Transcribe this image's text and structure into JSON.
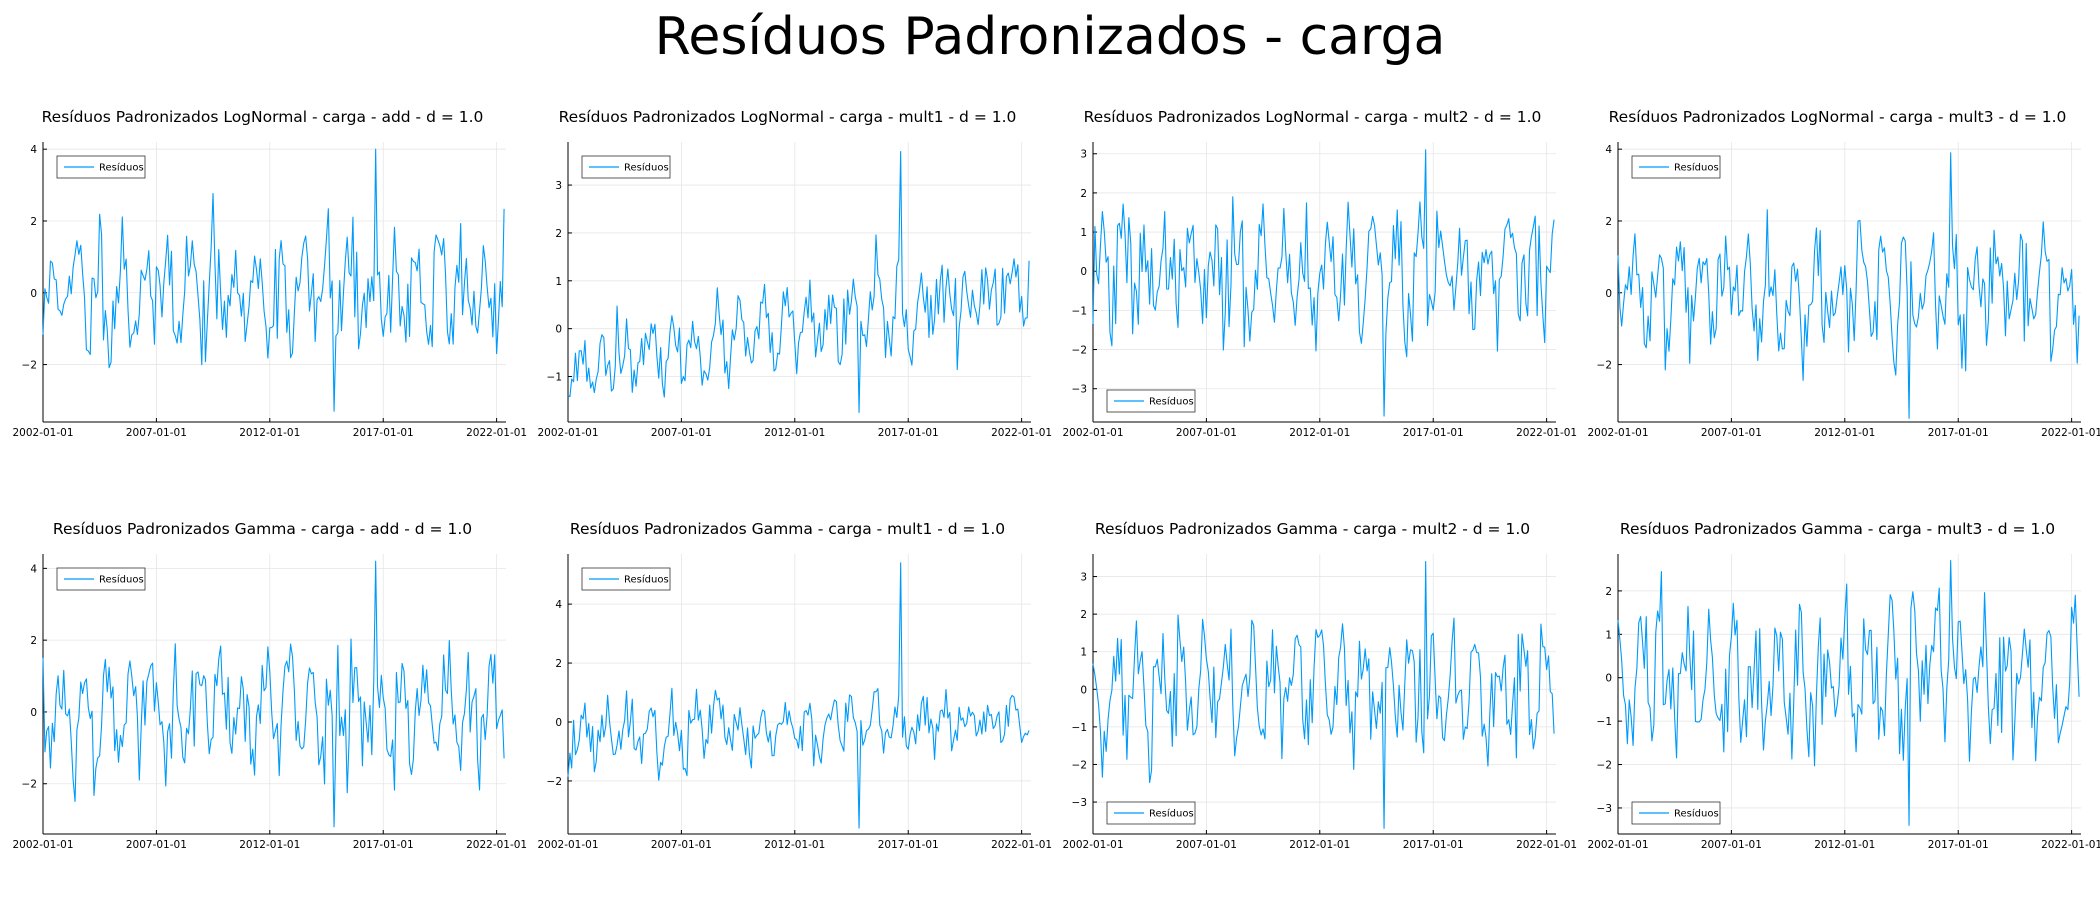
{
  "title": "Resíduos Padronizados - carga",
  "colors": {
    "series": "#009AFA",
    "axis": "#000000",
    "grid": "#E6E6E6"
  },
  "chart_data": [
    {
      "type": "line",
      "title": "Resíduos Padronizados LogNormal - carga - add - d = 1.0",
      "xlim": [
        "2002-01-01",
        "2022-06-01"
      ],
      "ylim": [
        -3.6,
        4.2
      ],
      "yticks": [
        -2,
        0,
        2,
        4
      ],
      "xticks": [
        "2002-01-01",
        "2007-01-01",
        "2012-01-01",
        "2017-01-01",
        "2022-01-01"
      ],
      "legend": {
        "label": "Resíduos",
        "position": "top-left"
      },
      "grid": true,
      "series": [
        {
          "name": "Resíduos",
          "start": "2002-01-01",
          "freq": "monthly",
          "stats": {
            "n": 245,
            "mean": 0.0,
            "sd": 1.0,
            "min": -3.3,
            "max": 4.0,
            "seed": 11,
            "trend": 0,
            "trend_hetero": 0
          }
        }
      ]
    },
    {
      "type": "line",
      "title": "Resíduos Padronizados LogNormal - carga - mult1 - d = 1.0",
      "xlim": [
        "2002-01-01",
        "2022-06-01"
      ],
      "ylim": [
        -1.95,
        3.9
      ],
      "yticks": [
        -1,
        0,
        1,
        2,
        3
      ],
      "xticks": [
        "2002-01-01",
        "2007-01-01",
        "2012-01-01",
        "2017-01-01",
        "2022-01-01"
      ],
      "legend": {
        "label": "Resíduos",
        "position": "top-left"
      },
      "grid": true,
      "series": [
        {
          "name": "Resíduos",
          "start": "2002-01-01",
          "freq": "monthly",
          "stats": {
            "n": 245,
            "mean": 0.0,
            "sd": 0.35,
            "min": -1.75,
            "max": 3.7,
            "seed": 23,
            "trend": 1.7,
            "trend_hetero": 1
          }
        }
      ]
    },
    {
      "type": "line",
      "title": "Resíduos Padronizados LogNormal - carga - mult2 - d = 1.0",
      "xlim": [
        "2002-01-01",
        "2022-06-01"
      ],
      "ylim": [
        -3.85,
        3.3
      ],
      "yticks": [
        -3,
        -2,
        -1,
        0,
        1,
        2,
        3
      ],
      "xticks": [
        "2002-01-01",
        "2007-01-01",
        "2012-01-01",
        "2017-01-01",
        "2022-01-01"
      ],
      "legend": {
        "label": "Resíduos",
        "position": "bottom-left"
      },
      "grid": true,
      "series": [
        {
          "name": "Resíduos",
          "start": "2002-01-01",
          "freq": "monthly",
          "stats": {
            "n": 245,
            "mean": 0.0,
            "sd": 0.95,
            "min": -3.7,
            "max": 3.1,
            "seed": 37,
            "trend": 0,
            "trend_hetero": 0
          }
        }
      ]
    },
    {
      "type": "line",
      "title": "Resíduos Padronizados LogNormal - carga - mult3 - d = 1.0",
      "xlim": [
        "2002-01-01",
        "2022-06-01"
      ],
      "ylim": [
        -3.6,
        4.2
      ],
      "yticks": [
        -2,
        0,
        2,
        4
      ],
      "xticks": [
        "2002-01-01",
        "2007-01-01",
        "2012-01-01",
        "2017-01-01",
        "2022-01-01"
      ],
      "legend": {
        "label": "Resíduos",
        "position": "top-left"
      },
      "grid": true,
      "series": [
        {
          "name": "Resíduos",
          "start": "2002-01-01",
          "freq": "monthly",
          "stats": {
            "n": 245,
            "mean": 0.0,
            "sd": 1.0,
            "min": -3.5,
            "max": 3.9,
            "seed": 41,
            "trend": 0,
            "trend_hetero": 0
          }
        }
      ]
    },
    {
      "type": "line",
      "title": "Resíduos Padronizados Gamma - carga - add - d = 1.0",
      "xlim": [
        "2002-01-01",
        "2022-06-01"
      ],
      "ylim": [
        -3.4,
        4.4
      ],
      "yticks": [
        -2,
        0,
        2,
        4
      ],
      "xticks": [
        "2002-01-01",
        "2007-01-01",
        "2012-01-01",
        "2017-01-01",
        "2022-01-01"
      ],
      "legend": {
        "label": "Resíduos",
        "position": "top-left"
      },
      "grid": true,
      "series": [
        {
          "name": "Resíduos",
          "start": "2002-01-01",
          "freq": "monthly",
          "stats": {
            "n": 245,
            "mean": 0.0,
            "sd": 1.0,
            "min": -3.2,
            "max": 4.2,
            "seed": 53,
            "trend": 0,
            "trend_hetero": 0
          }
        }
      ]
    },
    {
      "type": "line",
      "title": "Resíduos Padronizados Gamma - carga - mult1 - d = 1.0",
      "xlim": [
        "2002-01-01",
        "2022-06-01"
      ],
      "ylim": [
        -3.8,
        5.7
      ],
      "yticks": [
        -2,
        0,
        2,
        4
      ],
      "xticks": [
        "2002-01-01",
        "2007-01-01",
        "2012-01-01",
        "2017-01-01",
        "2022-01-01"
      ],
      "legend": {
        "label": "Resíduos",
        "position": "top-left"
      },
      "grid": true,
      "series": [
        {
          "name": "Resíduos",
          "start": "2002-01-01",
          "freq": "monthly",
          "stats": {
            "n": 245,
            "mean": -0.2,
            "sd": 0.85,
            "min": -3.6,
            "max": 5.4,
            "seed": 67,
            "trend": 0.6,
            "trend_hetero": -0.5
          }
        }
      ]
    },
    {
      "type": "line",
      "title": "Resíduos Padronizados Gamma - carga - mult2 - d = 1.0",
      "xlim": [
        "2002-01-01",
        "2022-06-01"
      ],
      "ylim": [
        -3.85,
        3.6
      ],
      "yticks": [
        -3,
        -2,
        -1,
        0,
        1,
        2,
        3
      ],
      "xticks": [
        "2002-01-01",
        "2007-01-01",
        "2012-01-01",
        "2017-01-01",
        "2022-01-01"
      ],
      "legend": {
        "label": "Resíduos",
        "position": "bottom-left"
      },
      "grid": true,
      "series": [
        {
          "name": "Resíduos",
          "start": "2002-01-01",
          "freq": "monthly",
          "stats": {
            "n": 245,
            "mean": 0.0,
            "sd": 1.0,
            "min": -3.7,
            "max": 3.4,
            "seed": 71,
            "trend": 0,
            "trend_hetero": 0
          }
        }
      ]
    },
    {
      "type": "line",
      "title": "Resíduos Padronizados Gamma - carga - mult3 - d = 1.0",
      "xlim": [
        "2002-01-01",
        "2022-06-01"
      ],
      "ylim": [
        -3.6,
        2.85
      ],
      "yticks": [
        -3,
        -2,
        -1,
        0,
        1,
        2
      ],
      "xticks": [
        "2002-01-01",
        "2007-01-01",
        "2012-01-01",
        "2017-01-01",
        "2022-01-01"
      ],
      "legend": {
        "label": "Resíduos",
        "position": "bottom-left"
      },
      "grid": true,
      "series": [
        {
          "name": "Resíduos",
          "start": "2002-01-01",
          "freq": "monthly",
          "stats": {
            "n": 245,
            "mean": 0.0,
            "sd": 1.0,
            "min": -3.4,
            "max": 2.7,
            "seed": 83,
            "trend": 0,
            "trend_hetero": 0
          }
        }
      ]
    }
  ]
}
